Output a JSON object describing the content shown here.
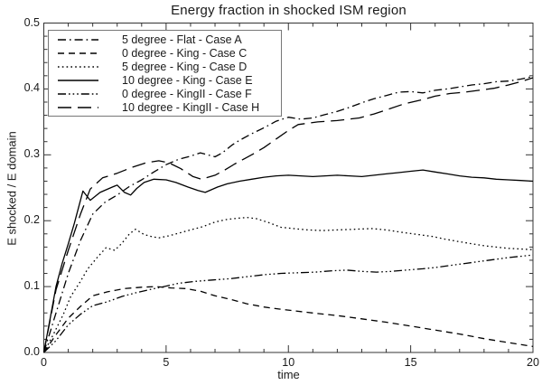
{
  "title": "Energy fraction in shocked ISM region",
  "colors": {
    "background": "#ffffff",
    "line": "#000000",
    "axis": "#333333",
    "text": "#1a1a1a",
    "legend_border": "#777777"
  },
  "chart_data": {
    "type": "line",
    "title": "Energy fraction in shocked ISM region",
    "xlabel": "time",
    "ylabel": "E shocked / E domain",
    "xlim": [
      0,
      20
    ],
    "ylim": [
      0.0,
      0.5
    ],
    "x_major_ticks": [
      0,
      5,
      10,
      15,
      20
    ],
    "y_major_ticks": [
      0.0,
      0.1,
      0.2,
      0.3,
      0.4,
      0.5
    ],
    "x_minor_interval": 1,
    "y_minor_interval": 0.02,
    "grid": false,
    "legend_position": "top-left-inside",
    "series": [
      {
        "name": "5 degree - Flat - Case A",
        "dash_style": "dash-dot",
        "points": [
          [
            0,
            0
          ],
          [
            0.5,
            0.06
          ],
          [
            1,
            0.12
          ],
          [
            1.5,
            0.17
          ],
          [
            2,
            0.21
          ],
          [
            2.5,
            0.228
          ],
          [
            3,
            0.239
          ],
          [
            3.5,
            0.252
          ],
          [
            4,
            0.262
          ],
          [
            4.5,
            0.274
          ],
          [
            5,
            0.285
          ],
          [
            5.5,
            0.293
          ],
          [
            6,
            0.298
          ],
          [
            6.4,
            0.303
          ],
          [
            7,
            0.297
          ],
          [
            7.3,
            0.303
          ],
          [
            7.7,
            0.315
          ],
          [
            8,
            0.322
          ],
          [
            8.5,
            0.332
          ],
          [
            9,
            0.341
          ],
          [
            9.5,
            0.351
          ],
          [
            10,
            0.357
          ],
          [
            10.5,
            0.354
          ],
          [
            11,
            0.356
          ],
          [
            11.5,
            0.361
          ],
          [
            12,
            0.366
          ],
          [
            12.5,
            0.372
          ],
          [
            13,
            0.379
          ],
          [
            13.5,
            0.385
          ],
          [
            14,
            0.39
          ],
          [
            14.5,
            0.395
          ],
          [
            15,
            0.396
          ],
          [
            15.5,
            0.394
          ],
          [
            16,
            0.398
          ],
          [
            16.5,
            0.4
          ],
          [
            17,
            0.403
          ],
          [
            17.5,
            0.406
          ],
          [
            18,
            0.408
          ],
          [
            18.5,
            0.411
          ],
          [
            19,
            0.412
          ],
          [
            19.5,
            0.415
          ],
          [
            20,
            0.419
          ]
        ]
      },
      {
        "name": "0 degree - King - Case C",
        "dash_style": "dashed",
        "points": [
          [
            0,
            0
          ],
          [
            0.5,
            0.027
          ],
          [
            1,
            0.052
          ],
          [
            1.5,
            0.07
          ],
          [
            2,
            0.086
          ],
          [
            2.6,
            0.092
          ],
          [
            3.3,
            0.097
          ],
          [
            4,
            0.099
          ],
          [
            4.6,
            0.1
          ],
          [
            5.2,
            0.098
          ],
          [
            5.8,
            0.097
          ],
          [
            6.4,
            0.093
          ],
          [
            7,
            0.086
          ],
          [
            7.6,
            0.081
          ],
          [
            8.3,
            0.074
          ],
          [
            9,
            0.069
          ],
          [
            9.6,
            0.066
          ],
          [
            10.3,
            0.063
          ],
          [
            11,
            0.06
          ],
          [
            12,
            0.056
          ],
          [
            13,
            0.051
          ],
          [
            14,
            0.046
          ],
          [
            15,
            0.04
          ],
          [
            16,
            0.034
          ],
          [
            17,
            0.028
          ],
          [
            18,
            0.021
          ],
          [
            19,
            0.015
          ],
          [
            20,
            0.009
          ]
        ]
      },
      {
        "name": "5 degree - King - Case D",
        "dash_style": "dotted",
        "points": [
          [
            0,
            0
          ],
          [
            0.4,
            0.028
          ],
          [
            0.8,
            0.058
          ],
          [
            1.1,
            0.085
          ],
          [
            1.5,
            0.108
          ],
          [
            1.8,
            0.127
          ],
          [
            2.2,
            0.145
          ],
          [
            2.55,
            0.159
          ],
          [
            2.9,
            0.155
          ],
          [
            3.2,
            0.166
          ],
          [
            3.5,
            0.18
          ],
          [
            3.75,
            0.187
          ],
          [
            4.1,
            0.179
          ],
          [
            4.4,
            0.176
          ],
          [
            4.7,
            0.174
          ],
          [
            5.1,
            0.177
          ],
          [
            5.5,
            0.181
          ],
          [
            6,
            0.186
          ],
          [
            6.5,
            0.191
          ],
          [
            7,
            0.198
          ],
          [
            7.5,
            0.202
          ],
          [
            8,
            0.204
          ],
          [
            8.3,
            0.205
          ],
          [
            8.7,
            0.203
          ],
          [
            9.2,
            0.197
          ],
          [
            9.7,
            0.19
          ],
          [
            10.2,
            0.188
          ],
          [
            10.8,
            0.186
          ],
          [
            11.4,
            0.185
          ],
          [
            12,
            0.186
          ],
          [
            12.7,
            0.187
          ],
          [
            13.4,
            0.188
          ],
          [
            14,
            0.186
          ],
          [
            14.7,
            0.182
          ],
          [
            15.3,
            0.179
          ],
          [
            15.9,
            0.176
          ],
          [
            16.4,
            0.172
          ],
          [
            17,
            0.168
          ],
          [
            17.5,
            0.165
          ],
          [
            18,
            0.162
          ],
          [
            18.5,
            0.16
          ],
          [
            19,
            0.158
          ],
          [
            19.5,
            0.157
          ],
          [
            20,
            0.156
          ]
        ]
      },
      {
        "name": "10 degree - King - Case E",
        "dash_style": "solid",
        "points": [
          [
            0,
            0
          ],
          [
            0.25,
            0.05
          ],
          [
            0.5,
            0.1
          ],
          [
            0.75,
            0.135
          ],
          [
            1,
            0.165
          ],
          [
            1.25,
            0.196
          ],
          [
            1.6,
            0.245
          ],
          [
            1.9,
            0.231
          ],
          [
            2.3,
            0.243
          ],
          [
            2.8,
            0.251
          ],
          [
            3,
            0.254
          ],
          [
            3.3,
            0.243
          ],
          [
            3.55,
            0.239
          ],
          [
            3.8,
            0.249
          ],
          [
            4.1,
            0.258
          ],
          [
            4.5,
            0.263
          ],
          [
            5,
            0.262
          ],
          [
            5.4,
            0.258
          ],
          [
            5.9,
            0.251
          ],
          [
            6.3,
            0.246
          ],
          [
            6.6,
            0.243
          ],
          [
            7.1,
            0.251
          ],
          [
            7.5,
            0.256
          ],
          [
            8,
            0.26
          ],
          [
            8.5,
            0.263
          ],
          [
            9,
            0.266
          ],
          [
            9.5,
            0.268
          ],
          [
            10,
            0.269
          ],
          [
            10.5,
            0.268
          ],
          [
            11,
            0.267
          ],
          [
            11.5,
            0.268
          ],
          [
            12,
            0.269
          ],
          [
            12.5,
            0.268
          ],
          [
            13,
            0.267
          ],
          [
            13.5,
            0.269
          ],
          [
            14,
            0.271
          ],
          [
            14.5,
            0.273
          ],
          [
            15,
            0.275
          ],
          [
            15.5,
            0.277
          ],
          [
            16,
            0.274
          ],
          [
            16.5,
            0.271
          ],
          [
            17,
            0.268
          ],
          [
            17.5,
            0.266
          ],
          [
            18,
            0.265
          ],
          [
            18.5,
            0.263
          ],
          [
            19,
            0.262
          ],
          [
            19.5,
            0.261
          ],
          [
            20,
            0.26
          ]
        ]
      },
      {
        "name": "0 degree - KingII - Case F",
        "dash_style": "dash-dot-dot-dot",
        "points": [
          [
            0,
            0
          ],
          [
            0.5,
            0.018
          ],
          [
            1,
            0.042
          ],
          [
            1.5,
            0.058
          ],
          [
            2,
            0.071
          ],
          [
            2.6,
            0.077
          ],
          [
            3.2,
            0.085
          ],
          [
            3.8,
            0.091
          ],
          [
            4.4,
            0.096
          ],
          [
            4.8,
            0.099
          ],
          [
            5.5,
            0.105
          ],
          [
            6.2,
            0.108
          ],
          [
            6.9,
            0.11
          ],
          [
            7.6,
            0.112
          ],
          [
            8.3,
            0.115
          ],
          [
            9,
            0.118
          ],
          [
            9.7,
            0.12
          ],
          [
            10.4,
            0.121
          ],
          [
            11.1,
            0.122
          ],
          [
            11.8,
            0.124
          ],
          [
            12.4,
            0.125
          ],
          [
            13,
            0.123
          ],
          [
            13.6,
            0.122
          ],
          [
            14.2,
            0.123
          ],
          [
            14.8,
            0.125
          ],
          [
            15.5,
            0.127
          ],
          [
            16,
            0.129
          ],
          [
            16.6,
            0.132
          ],
          [
            17.2,
            0.135
          ],
          [
            17.8,
            0.138
          ],
          [
            18.4,
            0.141
          ],
          [
            19,
            0.144
          ],
          [
            19.5,
            0.146
          ],
          [
            20,
            0.148
          ]
        ]
      },
      {
        "name": "10 degree - KingII - Case H",
        "dash_style": "long-dash",
        "points": [
          [
            0,
            0
          ],
          [
            0.5,
            0.095
          ],
          [
            1,
            0.155
          ],
          [
            1.5,
            0.21
          ],
          [
            1.9,
            0.248
          ],
          [
            2.4,
            0.265
          ],
          [
            3,
            0.272
          ],
          [
            3.6,
            0.281
          ],
          [
            4.2,
            0.288
          ],
          [
            4.7,
            0.291
          ],
          [
            5.1,
            0.288
          ],
          [
            5.6,
            0.279
          ],
          [
            6.1,
            0.267
          ],
          [
            6.45,
            0.263
          ],
          [
            7,
            0.269
          ],
          [
            7.4,
            0.277
          ],
          [
            7.8,
            0.286
          ],
          [
            8.2,
            0.294
          ],
          [
            8.6,
            0.302
          ],
          [
            9,
            0.311
          ],
          [
            9.5,
            0.324
          ],
          [
            10,
            0.337
          ],
          [
            10.4,
            0.346
          ],
          [
            10.8,
            0.348
          ],
          [
            11.2,
            0.35
          ],
          [
            12,
            0.352
          ],
          [
            12.9,
            0.356
          ],
          [
            13.5,
            0.362
          ],
          [
            14,
            0.368
          ],
          [
            14.7,
            0.377
          ],
          [
            15.5,
            0.384
          ],
          [
            16,
            0.389
          ],
          [
            16.6,
            0.393
          ],
          [
            17.2,
            0.395
          ],
          [
            17.8,
            0.398
          ],
          [
            18.4,
            0.401
          ],
          [
            19,
            0.406
          ],
          [
            19.5,
            0.411
          ],
          [
            20,
            0.417
          ]
        ]
      }
    ]
  }
}
